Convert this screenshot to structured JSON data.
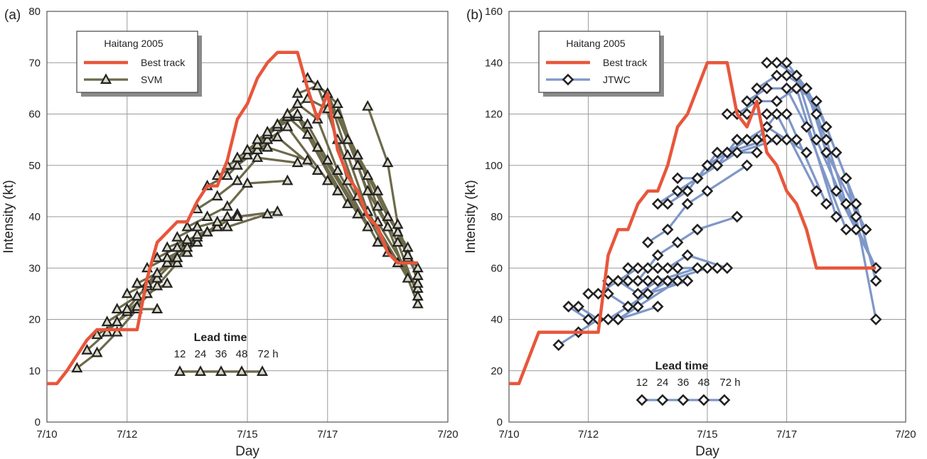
{
  "colors": {
    "best_track": "#e8563b",
    "svm_line": "#6d6a4a",
    "jtwc_line": "#7f97c8",
    "grid": "#9a9a9a",
    "marker": "#222222"
  },
  "chart_data": [
    {
      "panel": "(a)",
      "type": "line",
      "xlabel": "Day",
      "ylabel": "Intensity (kt)",
      "xlim": [
        10.0,
        20.0
      ],
      "ylim": [
        0,
        80
      ],
      "x_ticks": [
        10,
        12,
        15,
        17,
        20
      ],
      "x_tick_labels": [
        "7/10",
        "7/12",
        "7/15",
        "7/17",
        "7/20"
      ],
      "y_ticks": [
        0,
        10,
        20,
        30,
        40,
        50,
        60,
        70,
        80
      ],
      "y_tick_labels": [
        "0",
        "10",
        "20",
        "30",
        "40",
        "50",
        "60",
        "70",
        "80"
      ],
      "grid": true,
      "legend": {
        "title": "Haitang 2005",
        "entries": [
          "Best track",
          "SVM"
        ],
        "placement": "top-left"
      },
      "lead_time": {
        "title": "Lead time",
        "labels": [
          "12",
          "24",
          "36",
          "48",
          "72 h"
        ]
      },
      "best_track": {
        "name": "Best track",
        "x": [
          10.0,
          10.25,
          10.5,
          10.75,
          11.0,
          11.25,
          11.5,
          11.75,
          12.0,
          12.25,
          12.5,
          12.75,
          13.0,
          13.25,
          13.5,
          13.75,
          14.0,
          14.25,
          14.5,
          14.75,
          15.0,
          15.25,
          15.5,
          15.75,
          16.0,
          16.25,
          16.5,
          16.75,
          17.0,
          17.25,
          17.5,
          17.75,
          18.0,
          18.25,
          18.5,
          18.75,
          19.0,
          19.25
        ],
        "y": [
          7.5,
          7.5,
          10,
          13,
          16,
          18,
          18,
          18,
          18,
          18,
          28,
          35,
          37,
          39,
          39,
          43,
          46,
          46,
          51,
          59,
          62,
          67,
          70,
          72,
          72,
          72,
          65,
          59,
          64,
          53,
          48,
          45,
          40,
          38,
          33,
          31,
          31,
          31
        ]
      },
      "forecasts": [
        {
          "x": [
            10.75,
            11.25,
            11.75,
            12.25,
            12.75
          ],
          "y": [
            10.5,
            13.5,
            17.5,
            22,
            22
          ]
        },
        {
          "x": [
            11.0,
            11.5,
            12.0,
            12.5,
            13.0
          ],
          "y": [
            14,
            17.5,
            21.5,
            25,
            27
          ]
        },
        {
          "x": [
            11.25,
            11.75,
            12.25,
            12.75,
            13.25
          ],
          "y": [
            17,
            19.5,
            22.5,
            26.5,
            31
          ]
        },
        {
          "x": [
            11.5,
            12.0,
            12.5,
            13.0,
            13.5
          ],
          "y": [
            19.5,
            22,
            26.5,
            31,
            33
          ]
        },
        {
          "x": [
            11.75,
            12.25,
            12.75,
            13.25,
            13.75
          ],
          "y": [
            22,
            24.5,
            28,
            32,
            35
          ]
        },
        {
          "x": [
            12.0,
            12.5,
            13.0,
            13.5,
            14.0
          ],
          "y": [
            25,
            27,
            31,
            35,
            37
          ]
        },
        {
          "x": [
            12.25,
            12.75,
            13.25,
            13.75,
            14.25
          ],
          "y": [
            27,
            29,
            32,
            36,
            38
          ]
        },
        {
          "x": [
            12.5,
            13.0,
            13.5,
            14.0,
            14.5
          ],
          "y": [
            30,
            32,
            34,
            37,
            40
          ]
        },
        {
          "x": [
            12.75,
            13.25,
            13.75,
            14.25,
            14.75
          ],
          "y": [
            32,
            34,
            36.5,
            38,
            40.5
          ]
        },
        {
          "x": [
            13.0,
            13.5,
            14.0,
            14.5,
            15.5
          ],
          "y": [
            34,
            35.5,
            37,
            38,
            40.5
          ]
        },
        {
          "x": [
            13.25,
            13.75,
            14.25,
            14.75,
            15.75
          ],
          "y": [
            36,
            38,
            39,
            40,
            41
          ]
        },
        {
          "x": [
            13.5,
            14.0,
            14.5,
            15.0,
            16.0
          ],
          "y": [
            38,
            40,
            42,
            46.5,
            47
          ]
        },
        {
          "x": [
            13.75,
            14.25,
            14.75,
            15.25,
            16.25
          ],
          "y": [
            41.5,
            44,
            47,
            51.5,
            50.5
          ]
        },
        {
          "x": [
            14.0,
            14.5,
            15.0,
            15.5,
            16.5
          ],
          "y": [
            46,
            48,
            52,
            53.5,
            51
          ]
        },
        {
          "x": [
            14.25,
            14.75,
            15.25,
            15.75,
            16.75
          ],
          "y": [
            48,
            50,
            53,
            55.5,
            49
          ]
        },
        {
          "x": [
            14.5,
            15.0,
            15.5,
            16.0,
            17.0
          ],
          "y": [
            50,
            52,
            55,
            57.5,
            47
          ]
        },
        {
          "x": [
            14.75,
            15.25,
            15.75,
            16.25,
            17.25
          ],
          "y": [
            51.5,
            54,
            57.5,
            59.5,
            45
          ]
        },
        {
          "x": [
            15.0,
            15.5,
            16.0,
            16.5,
            17.5
          ],
          "y": [
            53,
            56,
            59.5,
            56,
            42.5
          ]
        },
        {
          "x": [
            15.25,
            15.75,
            16.25,
            16.75,
            17.75
          ],
          "y": [
            55,
            57.5,
            60,
            53.5,
            40.5
          ]
        },
        {
          "x": [
            15.5,
            16.0,
            16.5,
            17.0,
            18.0
          ],
          "y": [
            56.5,
            60,
            58,
            51,
            38
          ]
        },
        {
          "x": [
            15.75,
            16.25,
            16.75,
            17.25,
            18.25
          ],
          "y": [
            58,
            62,
            59,
            49,
            35
          ]
        },
        {
          "x": [
            16.0,
            16.5,
            17.0,
            17.5,
            18.5
          ],
          "y": [
            60,
            63,
            61,
            47,
            33
          ]
        },
        {
          "x": [
            16.25,
            16.75,
            17.25,
            17.75,
            18.75
          ],
          "y": [
            64,
            65.5,
            55,
            44,
            31
          ]
        },
        {
          "x": [
            16.5,
            17.0,
            17.5,
            18.0,
            19.0
          ],
          "y": [
            67,
            64,
            52,
            41,
            28
          ]
        },
        {
          "x": [
            16.75,
            17.25,
            17.75,
            18.25,
            19.25
          ],
          "y": [
            65.5,
            62,
            50,
            39,
            26
          ]
        },
        {
          "x": [
            17.0,
            17.5,
            18.0,
            18.5,
            19.25
          ],
          "y": [
            64,
            55,
            45,
            38,
            23
          ]
        },
        {
          "x": [
            17.25,
            17.75,
            18.25,
            18.75,
            19.25
          ],
          "y": [
            60,
            52,
            42,
            35,
            24.5
          ]
        },
        {
          "x": [
            17.5,
            18.0,
            18.5,
            19.0,
            19.25
          ],
          "y": [
            55,
            48,
            40,
            34,
            27
          ]
        },
        {
          "x": [
            17.75,
            18.25,
            18.75,
            19.0,
            19.25
          ],
          "y": [
            52,
            45,
            37,
            32,
            28.5
          ]
        },
        {
          "x": [
            18.0,
            18.5,
            18.75,
            19.0,
            19.25
          ],
          "y": [
            61.5,
            50.5,
            38.5,
            32.5,
            30
          ]
        }
      ]
    },
    {
      "panel": "(b)",
      "type": "line",
      "xlabel": "Day",
      "ylabel": "Intensity (kt)",
      "xlim": [
        10.0,
        20.0
      ],
      "ylim": [
        0,
        160
      ],
      "x_ticks": [
        10,
        12,
        15,
        17,
        20
      ],
      "x_tick_labels": [
        "7/10",
        "7/12",
        "7/15",
        "7/17",
        "7/20"
      ],
      "y_ticks": [
        0,
        20,
        40,
        60,
        80,
        100,
        120,
        140,
        160
      ],
      "y_tick_labels": [
        "0",
        "20",
        "40",
        "60",
        "80",
        "100",
        "120",
        "140",
        "160"
      ],
      "grid": true,
      "legend": {
        "title": "Haitang 2005",
        "entries": [
          "Best track",
          "JTWC"
        ],
        "placement": "top-left"
      },
      "lead_time": {
        "title": "Lead time",
        "labels": [
          "12",
          "24",
          "36",
          "48",
          "72 h"
        ]
      },
      "best_track": {
        "name": "Best track",
        "x": [
          10.0,
          10.25,
          10.5,
          10.75,
          11.0,
          11.25,
          11.5,
          11.75,
          12.0,
          12.25,
          12.5,
          12.75,
          13.0,
          13.25,
          13.5,
          13.75,
          14.0,
          14.25,
          14.5,
          14.75,
          15.0,
          15.25,
          15.5,
          15.75,
          16.0,
          16.25,
          16.5,
          16.75,
          17.0,
          17.25,
          17.5,
          17.75,
          18.0,
          18.25,
          18.5,
          18.75,
          19.0,
          19.25
        ],
        "y": [
          15,
          15,
          25,
          35,
          35,
          35,
          35,
          35,
          35,
          35,
          65,
          75,
          75,
          85,
          90,
          90,
          100,
          115,
          120,
          130,
          140,
          140,
          140,
          120,
          115,
          125,
          105,
          100,
          90,
          85,
          75,
          60,
          60,
          60,
          60,
          60,
          60,
          60
        ]
      },
      "forecasts": [
        {
          "x": [
            11.25,
            11.75,
            12.25,
            12.75,
            13.75
          ],
          "y": [
            30,
            35,
            40,
            40,
            45
          ]
        },
        {
          "x": [
            11.5,
            12.0,
            12.5,
            13.0,
            14.0
          ],
          "y": [
            45,
            40,
            40,
            45,
            55
          ]
        },
        {
          "x": [
            11.75,
            12.25,
            12.75,
            13.25,
            14.25
          ],
          "y": [
            45,
            40,
            40,
            45,
            55
          ]
        },
        {
          "x": [
            12.0,
            12.5,
            13.0,
            13.5,
            14.5
          ],
          "y": [
            50,
            50,
            45,
            50,
            55
          ]
        },
        {
          "x": [
            12.25,
            12.75,
            13.25,
            13.75,
            14.75
          ],
          "y": [
            50,
            55,
            50,
            55,
            60
          ]
        },
        {
          "x": [
            12.5,
            13.0,
            13.5,
            14.0,
            15.0
          ],
          "y": [
            55,
            55,
            55,
            55,
            60
          ]
        },
        {
          "x": [
            12.75,
            13.25,
            13.75,
            14.25,
            15.25
          ],
          "y": [
            55,
            60,
            60,
            60,
            60
          ]
        },
        {
          "x": [
            13.0,
            13.5,
            14.0,
            14.5,
            15.5
          ],
          "y": [
            60,
            60,
            60,
            65,
            60
          ]
        },
        {
          "x": [
            13.25,
            13.75,
            14.25,
            14.75,
            15.75
          ],
          "y": [
            55,
            65,
            70,
            75,
            80
          ]
        },
        {
          "x": [
            13.5,
            14.0,
            14.5,
            15.0,
            16.0
          ],
          "y": [
            70,
            75,
            85,
            90,
            100
          ]
        },
        {
          "x": [
            13.75,
            14.25,
            14.75,
            15.25,
            16.25
          ],
          "y": [
            85,
            90,
            95,
            105,
            105
          ]
        },
        {
          "x": [
            14.0,
            14.5,
            15.0,
            15.5,
            16.5
          ],
          "y": [
            85,
            90,
            100,
            105,
            110
          ]
        },
        {
          "x": [
            14.25,
            14.75,
            15.25,
            15.75,
            16.75
          ],
          "y": [
            95,
            95,
            100,
            105,
            110
          ]
        },
        {
          "x": [
            14.5,
            15.0,
            15.5,
            16.0,
            17.0
          ],
          "y": [
            90,
            100,
            105,
            110,
            110
          ]
        },
        {
          "x": [
            14.75,
            15.25,
            15.75,
            16.25,
            17.25
          ],
          "y": [
            95,
            100,
            110,
            110,
            110
          ]
        },
        {
          "x": [
            15.0,
            15.5,
            16.0,
            16.5,
            17.5
          ],
          "y": [
            100,
            105,
            110,
            115,
            105
          ]
        },
        {
          "x": [
            15.25,
            15.75,
            16.25,
            16.75,
            17.75
          ],
          "y": [
            100,
            110,
            110,
            120,
            90
          ]
        },
        {
          "x": [
            15.5,
            16.0,
            16.5,
            17.0,
            18.0
          ],
          "y": [
            120,
            120,
            120,
            120,
            85
          ]
        },
        {
          "x": [
            15.75,
            16.25,
            16.75,
            17.25,
            18.25
          ],
          "y": [
            120,
            125,
            125,
            130,
            80
          ]
        },
        {
          "x": [
            16.0,
            16.5,
            17.0,
            17.5,
            18.5
          ],
          "y": [
            125,
            130,
            130,
            115,
            75
          ]
        },
        {
          "x": [
            16.25,
            16.75,
            17.25,
            17.75,
            18.75
          ],
          "y": [
            130,
            135,
            135,
            110,
            75
          ]
        },
        {
          "x": [
            16.5,
            17.0,
            17.5,
            18.0,
            19.0
          ],
          "y": [
            140,
            140,
            130,
            105,
            75
          ]
        },
        {
          "x": [
            16.75,
            17.25,
            17.75,
            18.25,
            19.25
          ],
          "y": [
            140,
            135,
            120,
            90,
            60
          ]
        },
        {
          "x": [
            17.0,
            17.5,
            18.0,
            18.5,
            19.25
          ],
          "y": [
            135,
            130,
            110,
            85,
            60
          ]
        },
        {
          "x": [
            17.25,
            17.75,
            18.25,
            18.75,
            19.25
          ],
          "y": [
            130,
            125,
            105,
            85,
            55
          ]
        },
        {
          "x": [
            17.5,
            18.0,
            18.5,
            18.75,
            19.25
          ],
          "y": [
            130,
            115,
            95,
            80,
            40
          ]
        }
      ]
    }
  ]
}
